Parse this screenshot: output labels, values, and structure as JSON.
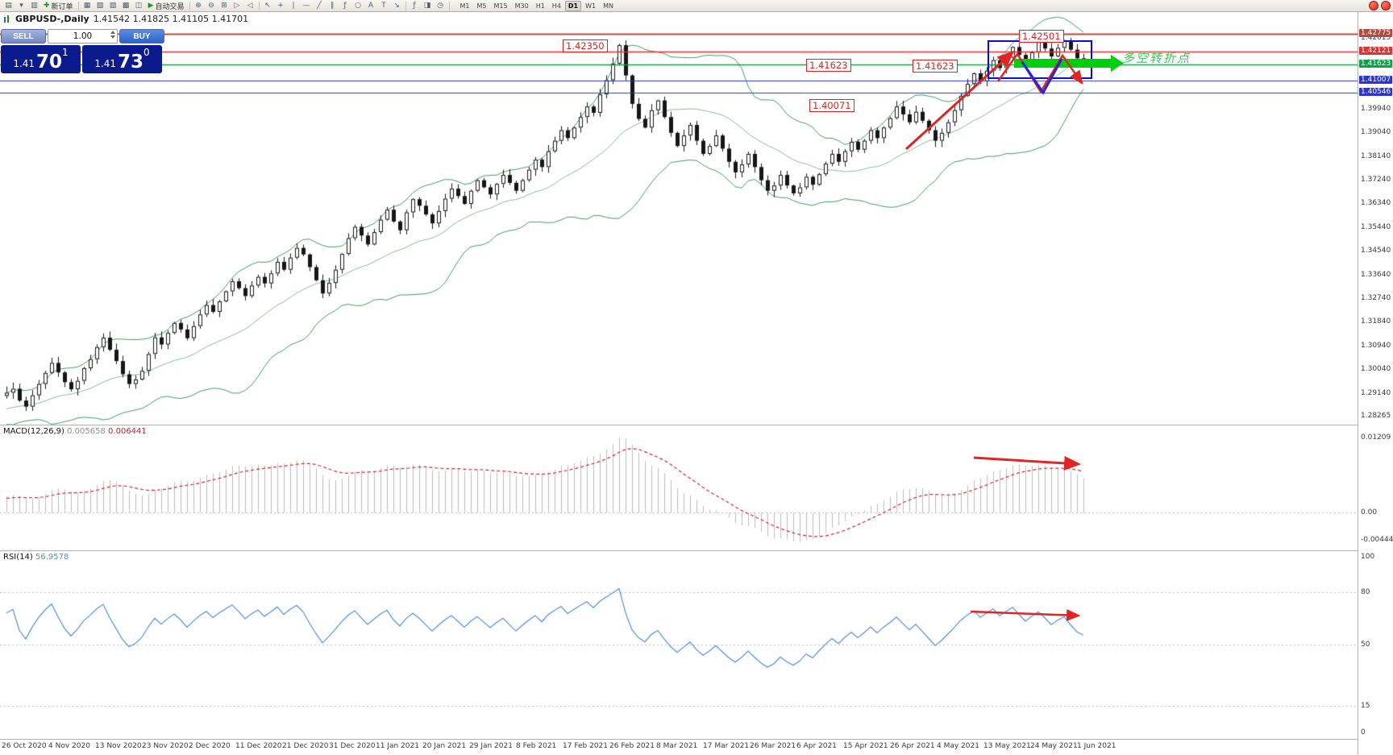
{
  "toolbar": {
    "items": [
      {
        "t": "icon",
        "n": "new-chart-icon",
        "g": "▤"
      },
      {
        "t": "icon",
        "n": "chart-dropdown-icon",
        "g": "▾"
      },
      {
        "t": "icon",
        "n": "profiles-icon",
        "g": "▥"
      },
      {
        "t": "btn",
        "n": "new-order-button",
        "g": "✚",
        "gc": "#1a9a1a",
        "label": "新订单"
      },
      {
        "t": "sep"
      },
      {
        "t": "icon",
        "n": "market-watch-icon",
        "g": "▦"
      },
      {
        "t": "icon",
        "n": "data-window-icon",
        "g": "▧"
      },
      {
        "t": "icon",
        "n": "navigator-icon",
        "g": "▨"
      },
      {
        "t": "icon",
        "n": "terminal-icon",
        "g": "▩"
      },
      {
        "t": "icon",
        "n": "strategy-tester-icon",
        "g": "◫"
      },
      {
        "t": "btn",
        "n": "autotrading-button",
        "g": "▶",
        "gc": "#1a9a1a",
        "label": "自动交易"
      },
      {
        "t": "sep"
      },
      {
        "t": "icon",
        "n": "zoom-in-icon",
        "g": "⊕"
      },
      {
        "t": "icon",
        "n": "zoom-out-icon",
        "g": "⊖"
      },
      {
        "t": "icon",
        "n": "tile-windows-icon",
        "g": "⊞"
      },
      {
        "t": "icon",
        "n": "auto-scroll-icon",
        "g": "▷"
      },
      {
        "t": "icon",
        "n": "chart-shift-icon",
        "g": "◁"
      },
      {
        "t": "sep"
      },
      {
        "t": "icon",
        "n": "cursor-icon",
        "g": "↖"
      },
      {
        "t": "icon",
        "n": "crosshair-icon",
        "g": "+"
      },
      {
        "t": "icon",
        "n": "vertical-line-icon",
        "g": "|"
      },
      {
        "t": "icon",
        "n": "horizontal-line-icon",
        "g": "—"
      },
      {
        "t": "icon",
        "n": "trendline-icon",
        "g": "╱"
      },
      {
        "t": "icon",
        "n": "channel-icon",
        "g": "∥"
      },
      {
        "t": "icon",
        "n": "fibonacci-icon",
        "g": "ƒ"
      },
      {
        "t": "icon",
        "n": "shapes-icon",
        "g": "○"
      },
      {
        "t": "icon",
        "n": "text-icon",
        "g": "A"
      },
      {
        "t": "icon",
        "n": "label-icon",
        "g": "T"
      },
      {
        "t": "icon",
        "n": "arrow-object-icon",
        "g": "↘"
      },
      {
        "t": "sep"
      },
      {
        "t": "icon",
        "n": "indicators-icon",
        "g": "ƒ"
      },
      {
        "t": "icon",
        "n": "templates-icon",
        "g": "◨"
      },
      {
        "t": "icon",
        "n": "periods-icon",
        "g": "◷"
      },
      {
        "t": "sep"
      }
    ],
    "timeframes": [
      "M1",
      "M5",
      "M15",
      "M30",
      "H1",
      "H4",
      "D1",
      "W1",
      "MN"
    ],
    "active_timeframe": "D1",
    "right_icons": [
      {
        "n": "news-alert-icon",
        "g": ""
      },
      {
        "n": "notification-icon",
        "g": ""
      }
    ]
  },
  "chart": {
    "title": "GBPUSD-,Daily",
    "ohlc_text": "1.41542 1.41825 1.41105 1.41701"
  },
  "trade_panel": {
    "sell_label": "SELL",
    "buy_label": "BUY",
    "volume": "1.00",
    "sell": {
      "prefix": "1.41",
      "pips": "70",
      "point": "1"
    },
    "buy": {
      "prefix": "1.41",
      "pips": "73",
      "point": "0"
    }
  },
  "annotations": {
    "flags": [
      "1.42350",
      "1.41623",
      "1.41623",
      "1.40071",
      "1.42501"
    ],
    "note": "多空转折点",
    "note_color": "#33cc55"
  },
  "macd_panel": {
    "name": "MACD(12,26,9)",
    "value_main": "0.005658",
    "value_signal": "0.006441",
    "axis": [
      "0.01209",
      "0.00",
      "-0.004446"
    ]
  },
  "rsi_panel": {
    "name": "RSI(14)",
    "value": "56.9578",
    "axis": [
      "100",
      "80",
      "50",
      "15",
      "0"
    ]
  },
  "chart_data": {
    "type": "candlestick",
    "symbol": "GBPUSD-",
    "timeframe": "Daily",
    "current_bar": {
      "open": "1.41542",
      "high": "1.41825",
      "low": "1.41105",
      "close": "1.41701"
    },
    "bid": "1.4170",
    "ask": "1.4173",
    "y_range": [
      1.2815,
      1.433
    ],
    "closes": [
      1.2915,
      1.293,
      1.2885,
      1.2862,
      1.2905,
      1.2948,
      1.299,
      1.3028,
      1.2992,
      1.2955,
      1.2928,
      1.296,
      1.3008,
      1.3042,
      1.3088,
      1.3124,
      1.3078,
      1.3035,
      1.2985,
      1.2948,
      1.2965,
      1.2998,
      1.3062,
      1.3125,
      1.3098,
      1.3142,
      1.318,
      1.3155,
      1.3122,
      1.3168,
      1.3212,
      1.3248,
      1.3222,
      1.3262,
      1.33,
      1.3338,
      1.3312,
      1.3282,
      1.3322,
      1.3355,
      1.333,
      1.3368,
      1.3412,
      1.3382,
      1.3428,
      1.3465,
      1.344,
      1.3392,
      1.3342,
      1.3292,
      1.3332,
      1.3382,
      1.3442,
      1.3502,
      1.3545,
      1.3512,
      1.3478,
      1.3525,
      1.3572,
      1.361,
      1.3565,
      1.3532,
      1.36,
      1.365,
      1.3625,
      1.3592,
      1.3558,
      1.3605,
      1.3652,
      1.369,
      1.3662,
      1.3632,
      1.3682,
      1.3722,
      1.3695,
      1.3668,
      1.3708,
      1.3742,
      1.3712,
      1.3682,
      1.3722,
      1.3762,
      1.38,
      1.3772,
      1.3832,
      1.3872,
      1.3912,
      1.3882,
      1.3922,
      1.3962,
      1.4002,
      1.3978,
      1.4048,
      1.4102,
      1.4165,
      1.4235,
      1.412,
      1.4012,
      1.3955,
      1.3922,
      1.3988,
      1.4025,
      1.3962,
      1.3902,
      1.3852,
      1.3892,
      1.3932,
      1.3872,
      1.3822,
      1.3852,
      1.3892,
      1.3842,
      1.3792,
      1.3752,
      1.3782,
      1.3822,
      1.3772,
      1.3722,
      1.3682,
      1.3702,
      1.3742,
      1.3702,
      1.3672,
      1.3695,
      1.3735,
      1.3705,
      1.3745,
      1.3785,
      1.3822,
      1.3792,
      1.3832,
      1.3868,
      1.3838,
      1.3872,
      1.3912,
      1.3882,
      1.3922,
      1.3958,
      1.4002,
      1.3972,
      1.3942,
      1.3982,
      1.3948,
      1.3912,
      1.3872,
      1.3902,
      1.3942,
      1.3988,
      1.4042,
      1.4088,
      1.4128,
      1.4098,
      1.4138,
      1.4178,
      1.4148,
      1.4188,
      1.4228,
      1.4198,
      1.4168,
      1.4208,
      1.4248,
      1.4222,
      1.4192,
      1.4225,
      1.4252,
      1.4218,
      1.4185,
      1.417
    ],
    "indicators": {
      "bollinger": {
        "period": 20,
        "deviation": 2,
        "color": "#3f9e63"
      },
      "macd": {
        "fast": 12,
        "slow": 26,
        "signal": 9,
        "histogram_color": "#bdbdbd",
        "signal_color": "#d22525"
      },
      "rsi": {
        "period": 14,
        "color": "#4f8fd9",
        "levels": [
          80,
          50,
          15
        ]
      }
    },
    "levels": [
      {
        "price": "1.42775",
        "color": "#b4493d"
      },
      {
        "price": "1.42121",
        "color": "#e03232"
      },
      {
        "price": "1.41623",
        "color": "#12a14b"
      },
      {
        "price": "1.41007",
        "color": "#2c35cf"
      },
      {
        "price": "1.40546",
        "color": "#2c35cf"
      }
    ],
    "y_axis_ticks": [
      "1.42615",
      "1.39940",
      "1.39040",
      "1.38140",
      "1.37240",
      "1.36340",
      "1.35440",
      "1.34540",
      "1.33640",
      "1.32740",
      "1.31840",
      "1.30940",
      "1.30040",
      "1.29140",
      "1.28265"
    ],
    "x_axis_dates": [
      "26 Oct 2020",
      "4 Nov 2020",
      "13 Nov 2020",
      "23 Nov 2020",
      "2 Dec 2020",
      "11 Dec 2020",
      "21 Dec 2020",
      "31 Dec 2020",
      "11 Jan 2021",
      "20 Jan 2021",
      "29 Jan 2021",
      "8 Feb 2021",
      "17 Feb 2021",
      "26 Feb 2021",
      "8 Mar 2021",
      "17 Mar 2021",
      "26 Mar 2021",
      "6 Apr 2021",
      "15 Apr 2021",
      "26 Apr 2021",
      "4 May 2021",
      "13 May 2021",
      "24 May 2021",
      "1 Jun 2021"
    ]
  }
}
